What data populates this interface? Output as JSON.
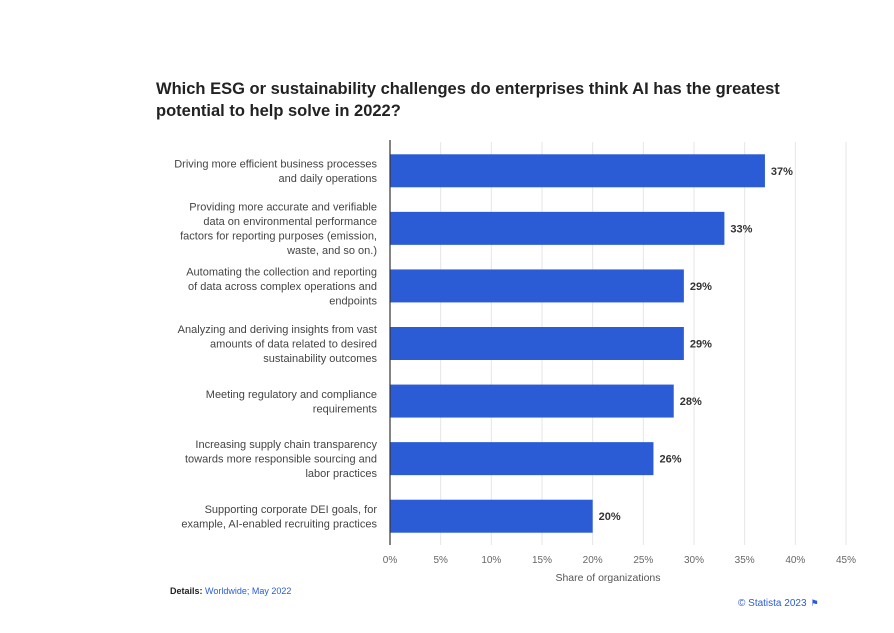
{
  "title": "Which ESG or sustainability challenges do enterprises think AI has the greatest potential to help solve in 2022?",
  "details_label": "Details:",
  "details_value": "Worldwide; May 2022",
  "credit": "© Statista 2023",
  "colors": {
    "bar": "#2b5cd6",
    "grid": "#e6e6e6",
    "axis": "#333333"
  },
  "chart_data": {
    "type": "bar",
    "orientation": "horizontal",
    "categories": [
      [
        "Driving more efficient business processes",
        "and daily operations"
      ],
      [
        "Providing more accurate and verifiable",
        "data on environmental performance",
        "factors for reporting purposes (emission,",
        "waste, and so on.)"
      ],
      [
        "Automating the collection and reporting",
        "of data across complex operations and",
        "endpoints"
      ],
      [
        "Analyzing and deriving insights from vast",
        "amounts of data related to desired",
        "sustainability outcomes"
      ],
      [
        "Meeting regulatory and compliance",
        "requirements"
      ],
      [
        "Increasing supply chain transparency",
        "towards more responsible sourcing and",
        "labor practices"
      ],
      [
        "Supporting corporate DEI goals, for",
        "example, AI-enabled recruiting practices"
      ]
    ],
    "values": [
      37,
      33,
      29,
      29,
      28,
      26,
      20
    ],
    "value_labels": [
      "37%",
      "33%",
      "29%",
      "29%",
      "28%",
      "26%",
      "20%"
    ],
    "xlim": [
      0,
      45
    ],
    "xticks": [
      "0%",
      "5%",
      "10%",
      "15%",
      "20%",
      "25%",
      "30%",
      "35%",
      "40%",
      "45%"
    ],
    "xlabel": "Share of organizations",
    "grid": true
  }
}
